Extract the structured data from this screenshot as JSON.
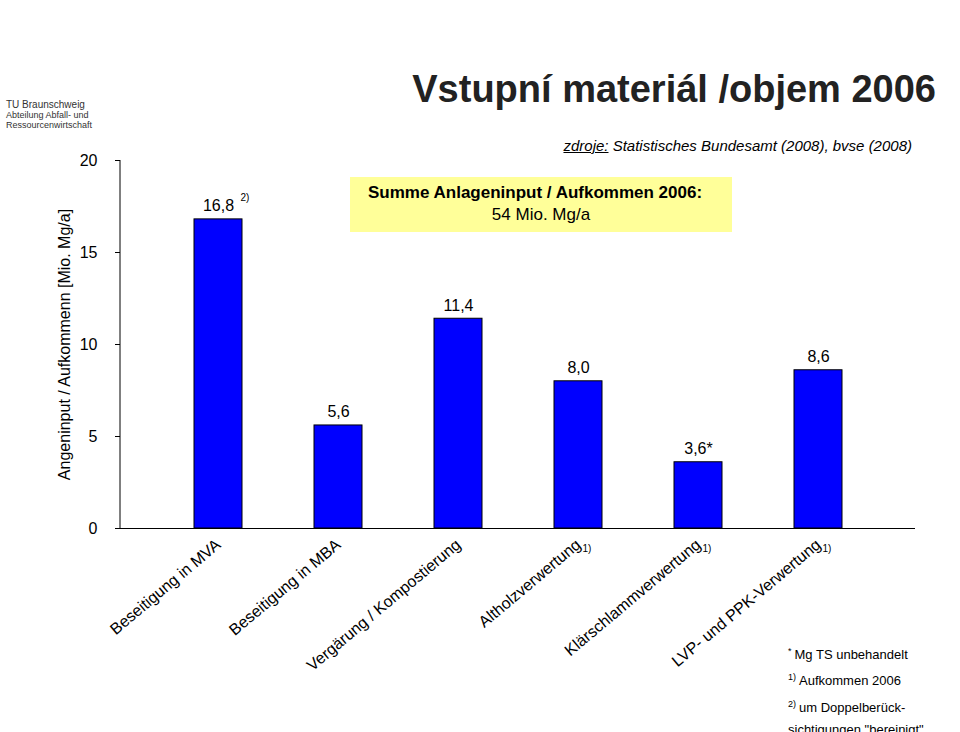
{
  "chart_data": {
    "type": "bar",
    "title": "Vstupní materiál /objem 2006",
    "source_label": "zdroje:",
    "source": "Statistisches Bundesamt (2008), bvse (2008)",
    "logo_text": [
      "TU Braunschweig",
      "Abteilung Abfall- und",
      "Ressourcenwirtschaft"
    ],
    "annotation": [
      "Summe Anlageninput / Aufkommen 2006:",
      "54 Mio. Mg/a"
    ],
    "y_label": "Angeninput / Aufkommenn [Mio. Mg/a]",
    "categories": [
      "Beseitigung in MVA",
      "Beseitigung in MBA",
      "Vergärung / Kompostierung",
      "Altholzverwertung",
      "Klärschlammverwertung",
      "LVP- und PPK-Verwertung"
    ],
    "values": [
      16.8,
      5.6,
      11.4,
      8.0,
      3.6,
      8.6
    ],
    "value_labels": [
      "16,8",
      "5,6",
      "11,4",
      "8,0",
      "3,6*",
      "8,6"
    ],
    "value_label_marks": [
      "2)",
      null,
      null,
      null,
      null,
      null
    ],
    "category_marks": [
      null,
      null,
      null,
      "1)",
      "1)",
      "1)"
    ],
    "footnotes": [
      {
        "mark": "*",
        "lines": [
          "Mg TS unbehandelt"
        ]
      },
      {
        "mark": "1)",
        "lines": [
          "Aufkommen 2006"
        ]
      },
      {
        "mark": "2)",
        "lines": [
          "um Doppelberück-",
          "sichtigungen \"bereinigt\""
        ]
      }
    ],
    "color": "#0000FF",
    "ylim": [
      0,
      20
    ],
    "yticks": [
      0,
      5,
      10,
      15,
      20
    ],
    "grid": false,
    "data_labels": true
  }
}
